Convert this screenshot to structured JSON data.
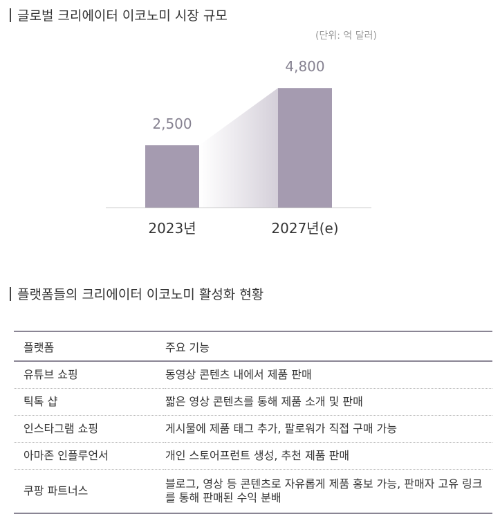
{
  "section1": {
    "title": "글로벌 크리에이터 이코노미 시장 규모"
  },
  "section2": {
    "title": "플랫폼들의 크리에이터 이코노미 활성화 현황"
  },
  "chart_data": {
    "type": "bar",
    "title": "글로벌 크리에이터 이코노미 시장 규모",
    "unit_label": "(단위: 억 달러)",
    "categories": [
      "2023년",
      "2027년(e)"
    ],
    "values": [
      2500,
      4800
    ],
    "data_labels": [
      "2,500",
      "4,800"
    ],
    "ylim": [
      0,
      5000
    ],
    "grid": false,
    "legend": "none",
    "colors": {
      "bar": "#a59bb0",
      "label": "#858190",
      "axis": "#c8c8c8"
    }
  },
  "table": {
    "headers": [
      "플랫폼",
      "주요 기능"
    ],
    "rows": [
      [
        "유튜브 쇼핑",
        "동영상 콘텐츠 내에서 제품 판매"
      ],
      [
        "틱톡 샵",
        "짧은 영상 콘텐츠를 통해 제품 소개 및 판매"
      ],
      [
        "인스타그램 쇼핑",
        "게시물에 제품 태그 추가, 팔로워가 직접 구매 가능"
      ],
      [
        "아마존 인플루언서",
        "개인 스토어프런트 생성, 추천 제품 판매"
      ],
      [
        "쿠팡 파트너스",
        "블로그, 영상 등 콘텐츠로 자유롭게 제품 홍보 가능, 판매자 고유 링크를 통해 판매된 수익 분배"
      ]
    ]
  }
}
